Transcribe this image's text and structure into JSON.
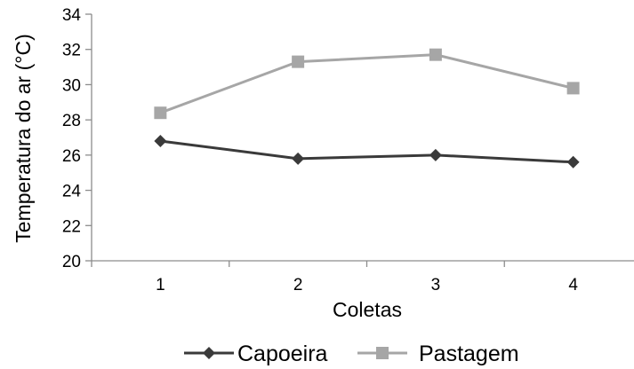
{
  "chart_data": {
    "type": "line",
    "title": "",
    "xlabel": "Coletas",
    "ylabel": "Temperatura do ar (°C)",
    "categories": [
      "1",
      "2",
      "3",
      "4"
    ],
    "ylim": [
      20,
      34
    ],
    "yticks": [
      20,
      22,
      24,
      26,
      28,
      30,
      32,
      34
    ],
    "grid": false,
    "legend_position": "bottom",
    "series": [
      {
        "name": "Capoeira",
        "values": [
          26.8,
          25.8,
          26.0,
          25.6
        ],
        "color": "#3a3a3a",
        "marker": "diamond"
      },
      {
        "name": "Pastagem",
        "values": [
          28.4,
          31.3,
          31.7,
          29.8
        ],
        "color": "#a6a6a6",
        "marker": "square"
      }
    ]
  }
}
